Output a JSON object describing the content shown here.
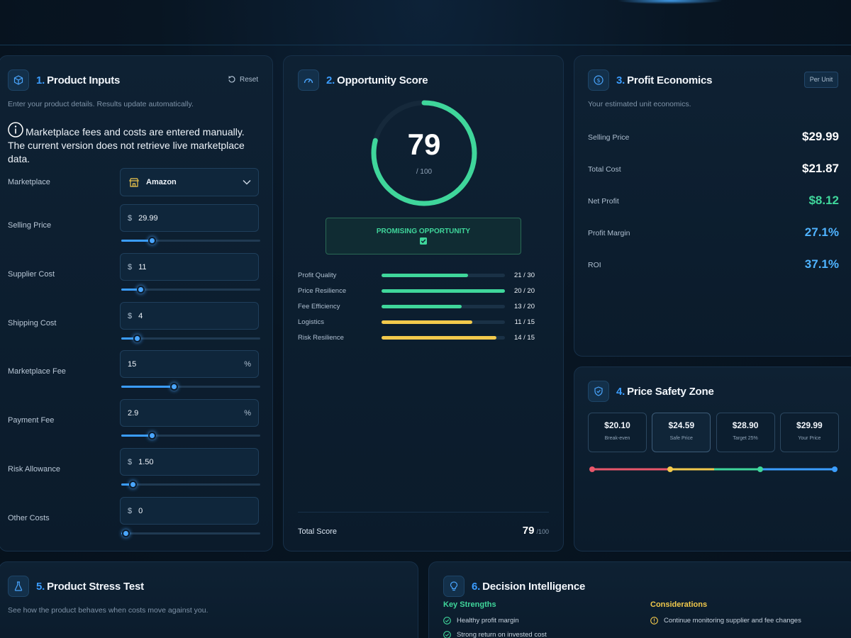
{
  "inputs": {
    "number": "1.",
    "title": "Product Inputs",
    "reset_label": "Reset",
    "subtitle": "Enter your product details. Results update automatically.",
    "notice": "Marketplace fees and costs are entered manually. The current version does not retrieve live marketplace data.",
    "marketplace_label": "Marketplace",
    "marketplace_value": "Amazon",
    "fields": [
      {
        "label": "Selling Price",
        "prefix": "$",
        "value": "29.99",
        "suffix": "",
        "slider": 0.22
      },
      {
        "label": "Supplier Cost",
        "prefix": "$",
        "value": "11",
        "suffix": "",
        "slider": 0.14
      },
      {
        "label": "Shipping Cost",
        "prefix": "$",
        "value": "4",
        "suffix": "",
        "slider": 0.11
      },
      {
        "label": "Marketplace Fee",
        "prefix": "",
        "value": "15",
        "suffix": "%",
        "slider": 0.38
      },
      {
        "label": "Payment Fee",
        "prefix": "",
        "value": "2.9",
        "suffix": "%",
        "slider": 0.22
      },
      {
        "label": "Risk Allowance",
        "prefix": "$",
        "value": "1.50",
        "suffix": "",
        "slider": 0.08
      },
      {
        "label": "Other Costs",
        "prefix": "$",
        "value": "0",
        "suffix": "",
        "slider": 0.03
      }
    ]
  },
  "score": {
    "number": "2.",
    "title": "Opportunity Score",
    "value": "79",
    "out_of": "/ 100",
    "fraction": 0.79,
    "verdict": "PROMISING OPPORTUNITY",
    "metrics": [
      {
        "label": "Profit Quality",
        "value": "21 / 30",
        "fraction": 0.7,
        "color": "#3fd69b"
      },
      {
        "label": "Price Resilience",
        "value": "20 / 20",
        "fraction": 1.0,
        "color": "#3fd69b"
      },
      {
        "label": "Fee Efficiency",
        "value": "13 / 20",
        "fraction": 0.65,
        "color": "#3fd69b"
      },
      {
        "label": "Logistics",
        "value": "11 / 15",
        "fraction": 0.733,
        "color": "#f2c94c"
      },
      {
        "label": "Risk Resilience",
        "value": "14 / 15",
        "fraction": 0.933,
        "color": "#f2c94c"
      }
    ],
    "total_label": "Total Score",
    "total_value": "79",
    "total_suffix": "/100"
  },
  "economics": {
    "number": "3.",
    "title": "Profit Economics",
    "badge": "Per Unit",
    "subtitle": "Your estimated unit economics.",
    "rows": [
      {
        "label": "Selling Price",
        "value": "$29.99",
        "color": "#ffffff"
      },
      {
        "label": "Total Cost",
        "value": "$21.87",
        "color": "#ffffff"
      },
      {
        "label": "Net Profit",
        "value": "$8.12",
        "color": "#3fd69b"
      },
      {
        "label": "Profit Margin",
        "value": "27.1%",
        "color": "#4fb3ff"
      },
      {
        "label": "ROI",
        "value": "37.1%",
        "color": "#4fb3ff"
      }
    ]
  },
  "safety": {
    "number": "4.",
    "title": "Price Safety Zone",
    "cards": [
      {
        "value": "$20.10",
        "label": "Break-even"
      },
      {
        "value": "$24.59",
        "label": "Safe Price"
      },
      {
        "value": "$28.90",
        "label": "Target 25%"
      },
      {
        "value": "$29.99",
        "label": "Your Price"
      }
    ],
    "colors": {
      "danger": "#e8576b",
      "warn": "#f2c94c",
      "safe": "#3fd69b",
      "target": "#3b9dff"
    }
  },
  "stress": {
    "number": "5.",
    "title": "Product Stress Test",
    "subtitle": "See how the product behaves when costs move against you."
  },
  "decision": {
    "number": "6.",
    "title": "Decision Intelligence",
    "strengths_title": "Key Strengths",
    "strengths": [
      "Healthy profit margin",
      "Strong return on invested cost"
    ],
    "considerations_title": "Considerations",
    "considerations": [
      "Continue monitoring supplier and fee changes"
    ]
  }
}
